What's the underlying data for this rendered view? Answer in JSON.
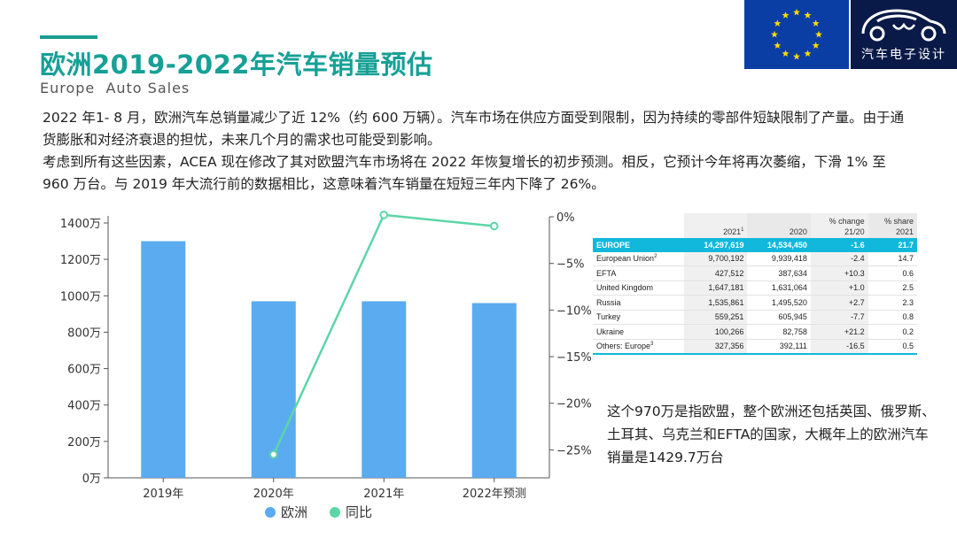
{
  "header": {
    "title": "欧洲2019-2022年汽车销量预估",
    "subtitle": "Europe  Auto Sales",
    "logo_text": "汽车电子设计"
  },
  "intro": {
    "para1": "2022 年1- 8 月，欧洲汽车总销量减少了近 12%（约 600 万辆）。汽车市场在供应方面受到限制，因为持续的零部件短缺限制了产量。由于通货膨胀和对经济衰退的担忧，未来几个月的需求也可能受到影响。",
    "para2": "考虑到所有这些因素，ACEA 现在修改了其对欧盟汽车市场将在 2022 年恢复增长的初步预测。相反，它预计今年将再次萎缩，下滑 1% 至 960 万台。与 2019 年大流行前的数据相比，这意味着汽车销量在短短三年内下降了 26%。"
  },
  "chart_data": {
    "type": "bar",
    "categories": [
      "2019年",
      "2020年",
      "2021年",
      "2022年预测"
    ],
    "series": [
      {
        "name": "欧洲",
        "type": "bar",
        "axis": "left",
        "values": [
          1300,
          970,
          970,
          960
        ],
        "color": "#5aabef"
      },
      {
        "name": "同比",
        "type": "line",
        "axis": "right",
        "values": [
          null,
          -25.5,
          0.2,
          -1.0
        ],
        "color": "#5cd6a7"
      }
    ],
    "y_left": {
      "min": 0,
      "max": 1400,
      "ticks": [
        0,
        200,
        400,
        600,
        800,
        1000,
        1200,
        1400
      ],
      "tick_labels": [
        "0万",
        "200万",
        "400万",
        "600万",
        "800万",
        "1000万",
        "1200万",
        "1400万"
      ]
    },
    "y_right": {
      "min": -28,
      "max": 0,
      "ticks": [
        0,
        -5,
        -10,
        -15,
        -20,
        -25
      ],
      "tick_labels": [
        "0%",
        "−5%",
        "−10%",
        "−15%",
        "−20%",
        "−25%"
      ]
    },
    "legend": {
      "placement": "bottom",
      "items": [
        "欧洲",
        "同比"
      ]
    },
    "grid": false
  },
  "table": {
    "headers": [
      "",
      "2021¹",
      "2020",
      "% change 21/20",
      "% share 2021"
    ],
    "header_lines": [
      [
        "",
        ""
      ],
      [
        "",
        "2021"
      ],
      [
        "",
        "2020"
      ],
      [
        "% change",
        "21/20"
      ],
      [
        "% share",
        "2021"
      ]
    ],
    "header_sup": {
      "1": "1"
    },
    "rows": [
      {
        "label": "EUROPE",
        "sup": "",
        "v2021": "14,297,619",
        "v2020": "14,534,450",
        "change": "-1.6",
        "share": "21.7",
        "highlight": true
      },
      {
        "label": "European Union",
        "sup": "2",
        "v2021": "9,700,192",
        "v2020": "9,939,418",
        "change": "-2.4",
        "share": "14.7"
      },
      {
        "label": "EFTA",
        "sup": "",
        "v2021": "427,512",
        "v2020": "387,634",
        "change": "+10.3",
        "share": "0.6"
      },
      {
        "label": "United Kingdom",
        "sup": "",
        "v2021": "1,647,181",
        "v2020": "1,631,064",
        "change": "+1.0",
        "share": "2.5"
      },
      {
        "label": "Russia",
        "sup": "",
        "v2021": "1,535,861",
        "v2020": "1,495,520",
        "change": "+2.7",
        "share": "2.3"
      },
      {
        "label": "Turkey",
        "sup": "",
        "v2021": "559,251",
        "v2020": "605,945",
        "change": "-7.7",
        "share": "0.8"
      },
      {
        "label": "Ukraine",
        "sup": "",
        "v2021": "100,266",
        "v2020": "82,758",
        "change": "+21.2",
        "share": "0.2"
      },
      {
        "label": "Others: Europe",
        "sup": "3",
        "v2021": "327,356",
        "v2020": "392,111",
        "change": "-16.5",
        "share": "0.5"
      }
    ]
  },
  "note": "这个970万是指欧盟，整个欧洲还包括英国、俄罗斯、土耳其、乌克兰和EFTA的国家，大概年上的欧洲汽车销量是1429.7万台",
  "colors": {
    "accent": "#16a096",
    "bar": "#5aabef",
    "line": "#5cd6a7",
    "table_highlight": "#12b8dc",
    "flag_blue": "#0b3ea4",
    "flag_star": "#ffdd00",
    "logo_bg": "#0a1a48"
  }
}
